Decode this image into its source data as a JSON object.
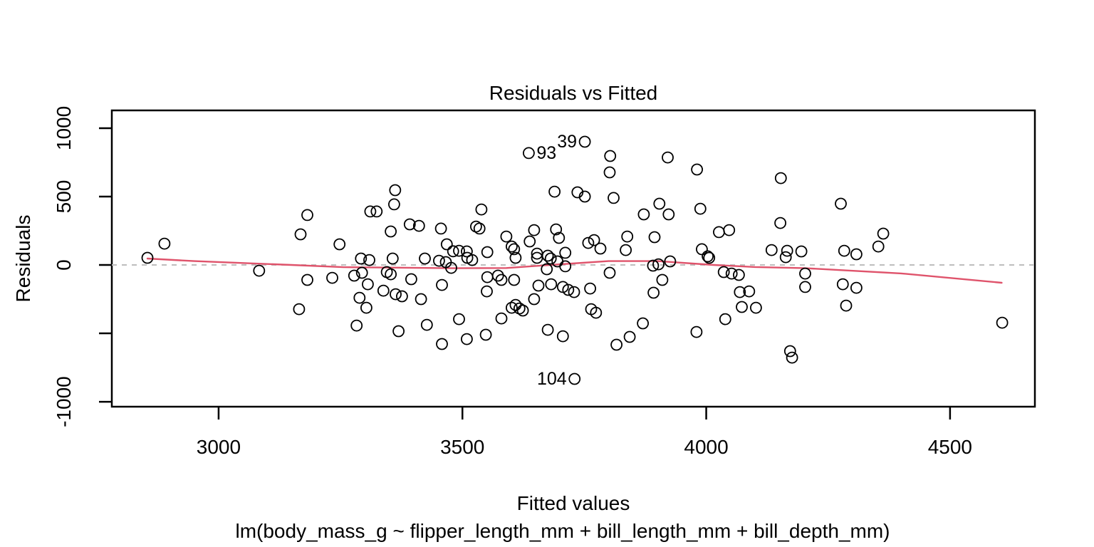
{
  "chart_data": {
    "type": "scatter",
    "title": "Residuals vs Fitted",
    "xlabel": "Fitted values",
    "sublabel": "lm(body_mass_g ~ flipper_length_mm + bill_length_mm + bill_depth_mm)",
    "ylabel": "Residuals",
    "xlim": [
      2781,
      4674
    ],
    "ylim": [
      -1036,
      1130
    ],
    "x_ticks": [
      3000,
      3500,
      4000,
      4500
    ],
    "y_ticks": [
      {
        "v": 1000,
        "label": "1000"
      },
      {
        "v": 500,
        "label": "500"
      },
      {
        "v": 0,
        "label": "0"
      },
      {
        "v": -500,
        "label": ""
      },
      {
        "v": -1000,
        "label": "-1000"
      }
    ],
    "grid": false,
    "legend": "none",
    "zero_line": {
      "y": 0,
      "style": "dashed",
      "color": "#BEBEBE"
    },
    "colors": {
      "points": "#000000",
      "smooth": "#DF536B",
      "zero_dash": "#BEBEBE",
      "frame": "#000000"
    },
    "labeled_points": [
      {
        "label": "93",
        "x": 3636,
        "y": 818,
        "side": "right"
      },
      {
        "label": "39",
        "x": 3751,
        "y": 901,
        "side": "left"
      },
      {
        "label": "104",
        "x": 3730,
        "y": -833,
        "side": "left"
      }
    ],
    "smooth_line": [
      [
        2854,
        47
      ],
      [
        2950,
        28
      ],
      [
        3150,
        0
      ],
      [
        3255,
        -16
      ],
      [
        3480,
        -24
      ],
      [
        3590,
        -22
      ],
      [
        3680,
        0
      ],
      [
        3800,
        28
      ],
      [
        3900,
        28
      ],
      [
        4015,
        0
      ],
      [
        4100,
        -15
      ],
      [
        4200,
        -23
      ],
      [
        4400,
        -62
      ],
      [
        4606,
        -130
      ]
    ],
    "points": [
      [
        2854,
        52
      ],
      [
        2889,
        156
      ],
      [
        3083,
        -42
      ],
      [
        3168,
        224
      ],
      [
        3182,
        365
      ],
      [
        3182,
        -109
      ],
      [
        3233,
        -94
      ],
      [
        3165,
        -323
      ],
      [
        3248,
        151
      ],
      [
        3311,
        391
      ],
      [
        3324,
        391
      ],
      [
        3362,
        547
      ],
      [
        3360,
        443
      ],
      [
        3353,
        245
      ],
      [
        3392,
        297
      ],
      [
        3411,
        286
      ],
      [
        3456,
        266
      ],
      [
        3539,
        406
      ],
      [
        3528,
        281
      ],
      [
        3535,
        266
      ],
      [
        3468,
        151
      ],
      [
        3493,
        104
      ],
      [
        3509,
        99
      ],
      [
        3481,
        100
      ],
      [
        3551,
        94
      ],
      [
        3590,
        208
      ],
      [
        3601,
        135
      ],
      [
        3606,
        115
      ],
      [
        3638,
        172
      ],
      [
        3647,
        255
      ],
      [
        3653,
        83
      ],
      [
        3675,
        68
      ],
      [
        3692,
        260
      ],
      [
        3698,
        198
      ],
      [
        3711,
        89
      ],
      [
        3689,
        536
      ],
      [
        3636,
        818
      ],
      [
        3751,
        901
      ],
      [
        3292,
        47
      ],
      [
        3309,
        36
      ],
      [
        3357,
        47
      ],
      [
        3423,
        47
      ],
      [
        3452,
        31
      ],
      [
        3466,
        21
      ],
      [
        3477,
        -21
      ],
      [
        3510,
        52
      ],
      [
        3520,
        36
      ],
      [
        3609,
        52
      ],
      [
        3653,
        52
      ],
      [
        3673,
        -31
      ],
      [
        3681,
        47
      ],
      [
        3695,
        26
      ],
      [
        3711,
        -10
      ],
      [
        3278,
        -78
      ],
      [
        3294,
        -57
      ],
      [
        3306,
        -141
      ],
      [
        3338,
        -188
      ],
      [
        3345,
        -52
      ],
      [
        3353,
        -68
      ],
      [
        3363,
        -214
      ],
      [
        3376,
        -229
      ],
      [
        3395,
        -104
      ],
      [
        3415,
        -250
      ],
      [
        3458,
        -146
      ],
      [
        3289,
        -240
      ],
      [
        3303,
        -313
      ],
      [
        3283,
        -443
      ],
      [
        3369,
        -484
      ],
      [
        3427,
        -438
      ],
      [
        3458,
        -578
      ],
      [
        3493,
        -396
      ],
      [
        3509,
        -542
      ],
      [
        3548,
        -510
      ],
      [
        3550,
        -193
      ],
      [
        3551,
        -89
      ],
      [
        3573,
        -78
      ],
      [
        3580,
        -109
      ],
      [
        3606,
        -109
      ],
      [
        3580,
        -391
      ],
      [
        3601,
        -313
      ],
      [
        3609,
        -292
      ],
      [
        3617,
        -318
      ],
      [
        3624,
        -333
      ],
      [
        3647,
        -250
      ],
      [
        3656,
        -151
      ],
      [
        3675,
        -474
      ],
      [
        3682,
        -141
      ],
      [
        3706,
        -521
      ],
      [
        3706,
        -161
      ],
      [
        3717,
        -182
      ],
      [
        3729,
        -198
      ],
      [
        3730,
        -833
      ],
      [
        3803,
        797
      ],
      [
        3802,
        677
      ],
      [
        3921,
        786
      ],
      [
        3981,
        698
      ],
      [
        4153,
        635
      ],
      [
        3736,
        531
      ],
      [
        3751,
        500
      ],
      [
        3810,
        490
      ],
      [
        3904,
        448
      ],
      [
        3872,
        370
      ],
      [
        3923,
        370
      ],
      [
        3988,
        411
      ],
      [
        4152,
        307
      ],
      [
        4026,
        240
      ],
      [
        4047,
        255
      ],
      [
        3838,
        208
      ],
      [
        3894,
        203
      ],
      [
        3758,
        161
      ],
      [
        3770,
        182
      ],
      [
        3783,
        120
      ],
      [
        3835,
        109
      ],
      [
        3991,
        115
      ],
      [
        4003,
        63
      ],
      [
        4134,
        109
      ],
      [
        4166,
        104
      ],
      [
        4195,
        99
      ],
      [
        3891,
        -5
      ],
      [
        3902,
        5
      ],
      [
        3926,
        26
      ],
      [
        4006,
        52
      ],
      [
        4163,
        57
      ],
      [
        3802,
        -57
      ],
      [
        4036,
        -52
      ],
      [
        4052,
        -63
      ],
      [
        4067,
        -73
      ],
      [
        3762,
        -172
      ],
      [
        3892,
        -203
      ],
      [
        3910,
        -109
      ],
      [
        4069,
        -198
      ],
      [
        4088,
        -193
      ],
      [
        3764,
        -323
      ],
      [
        3774,
        -349
      ],
      [
        4073,
        -307
      ],
      [
        4102,
        -313
      ],
      [
        3870,
        -427
      ],
      [
        3980,
        -490
      ],
      [
        4039,
        -396
      ],
      [
        3843,
        -526
      ],
      [
        3816,
        -583
      ],
      [
        4172,
        -630
      ],
      [
        4176,
        -677
      ],
      [
        4276,
        448
      ],
      [
        4363,
        229
      ],
      [
        4353,
        135
      ],
      [
        4283,
        104
      ],
      [
        4308,
        78
      ],
      [
        4203,
        -63
      ],
      [
        4203,
        -161
      ],
      [
        4280,
        -141
      ],
      [
        4308,
        -167
      ],
      [
        4287,
        -297
      ],
      [
        4607,
        -422
      ]
    ]
  }
}
